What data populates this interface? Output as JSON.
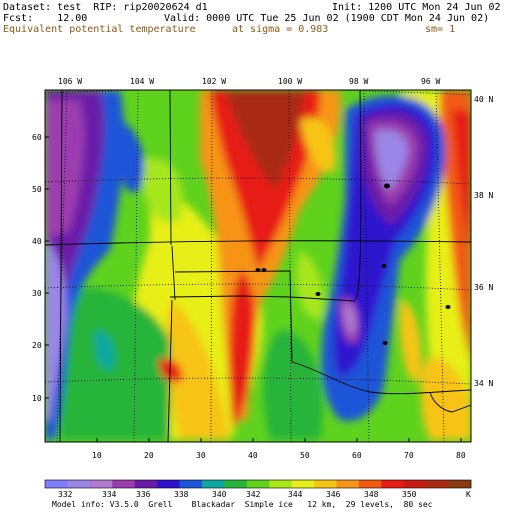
{
  "header": {
    "dataset_line": "Dataset: test  RIP: rip20020624 d1",
    "init_line": "Init: 1200 UTC Mon 24 Jun 02",
    "fcst_line": "Fcst:    12.00",
    "valid_line": "Valid: 0000 UTC Tue 25 Jun 02 (1900 CDT Mon 24 Jun 02)",
    "field_name": "Equivalent potential temperature",
    "level_text": "at sigma = 0.983",
    "smoothing_text": "sm= 1"
  },
  "axes": {
    "top_lon": [
      "106 W",
      "104 W",
      "102 W",
      "100 W",
      "98 W",
      "96 W"
    ],
    "right_lat": [
      "40 N",
      "38 N",
      "36 N",
      "34 N"
    ],
    "left_y": [
      "60",
      "50",
      "40",
      "30",
      "20",
      "10"
    ],
    "bottom_x": [
      "10",
      "20",
      "30",
      "40",
      "50",
      "60",
      "70",
      "80"
    ]
  },
  "colorbar": {
    "labels": [
      "332",
      "334",
      "336",
      "338",
      "340",
      "342",
      "344",
      "346",
      "348",
      "350"
    ],
    "unit": "K",
    "colors": [
      "#7f7fff",
      "#9a86e6",
      "#b07ad0",
      "#9b3cae",
      "#6a1aa8",
      "#2e12cf",
      "#1a55d8",
      "#0fa8a0",
      "#27b43a",
      "#5fd21e",
      "#a8e61a",
      "#e8ef18",
      "#f7c418",
      "#f79418",
      "#f25a12",
      "#e81a12",
      "#c81a12",
      "#a82a12",
      "#8a3a14"
    ]
  },
  "footer": {
    "model_info": "Model info: V3.5.0  Grell    Blackadar  Simple ice   12 km,  29 levels,  80 sec"
  },
  "icons": {
    "stations": "station-dot-icon"
  }
}
